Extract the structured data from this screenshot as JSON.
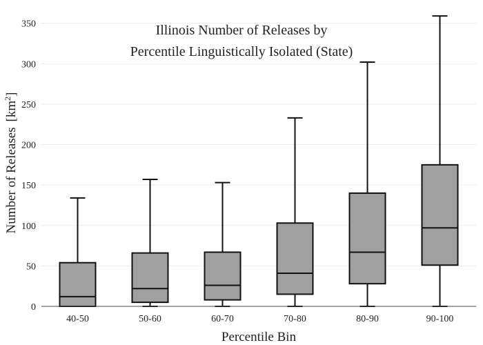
{
  "chart_data": {
    "type": "box",
    "title_lines": [
      "Illinois Number of Releases by",
      "Percentile Linguistically Isolated (State)"
    ],
    "xlabel": "Percentile Bin",
    "ylabel": "Number of Releases",
    "ylabel_unit": "[km",
    "ylabel_unit_sup": "2",
    "ylabel_unit_close": "]",
    "ylim": [
      0,
      360
    ],
    "yticks": [
      0,
      50,
      100,
      150,
      200,
      250,
      300,
      350
    ],
    "ytick_labels": [
      "0",
      "50",
      "100",
      "150",
      "200",
      "250",
      "300",
      "350"
    ],
    "grid": true,
    "categories": [
      "40-50",
      "50-60",
      "60-70",
      "70-80",
      "80-90",
      "90-100"
    ],
    "boxes": [
      {
        "whisker_low": 0,
        "q1": 0,
        "median": 12,
        "q3": 54,
        "whisker_high": 134
      },
      {
        "whisker_low": 0,
        "q1": 5,
        "median": 22,
        "q3": 66,
        "whisker_high": 157
      },
      {
        "whisker_low": 0,
        "q1": 8,
        "median": 26,
        "q3": 67,
        "whisker_high": 153
      },
      {
        "whisker_low": 0,
        "q1": 15,
        "median": 41,
        "q3": 103,
        "whisker_high": 233
      },
      {
        "whisker_low": 0,
        "q1": 28,
        "median": 67,
        "q3": 140,
        "whisker_high": 302
      },
      {
        "whisker_low": 0,
        "q1": 51,
        "median": 97,
        "q3": 175,
        "whisker_high": 359
      }
    ],
    "colors": {
      "box_fill": "#a0a0a0",
      "stroke": "#111111",
      "grid": "#ececec",
      "axis": "#444444"
    }
  }
}
